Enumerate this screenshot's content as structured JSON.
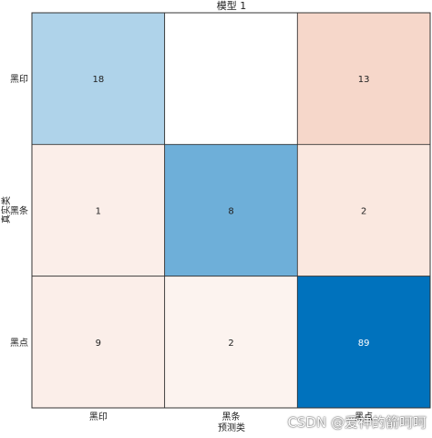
{
  "chart_data": {
    "type": "heatmap",
    "title": "模型 1",
    "xlabel": "预测类",
    "ylabel": "真实类",
    "rows": [
      "黑印",
      "黑条",
      "黑点"
    ],
    "columns": [
      "黑印",
      "黑条",
      "黑点"
    ],
    "values": [
      [
        18,
        null,
        13
      ],
      [
        1,
        8,
        2
      ],
      [
        9,
        2,
        89
      ]
    ],
    "correct_color": "#0072BD",
    "incorrect_color": "#D95319",
    "grid": false
  },
  "watermark": "CSDN @爱神的箭呵呵"
}
